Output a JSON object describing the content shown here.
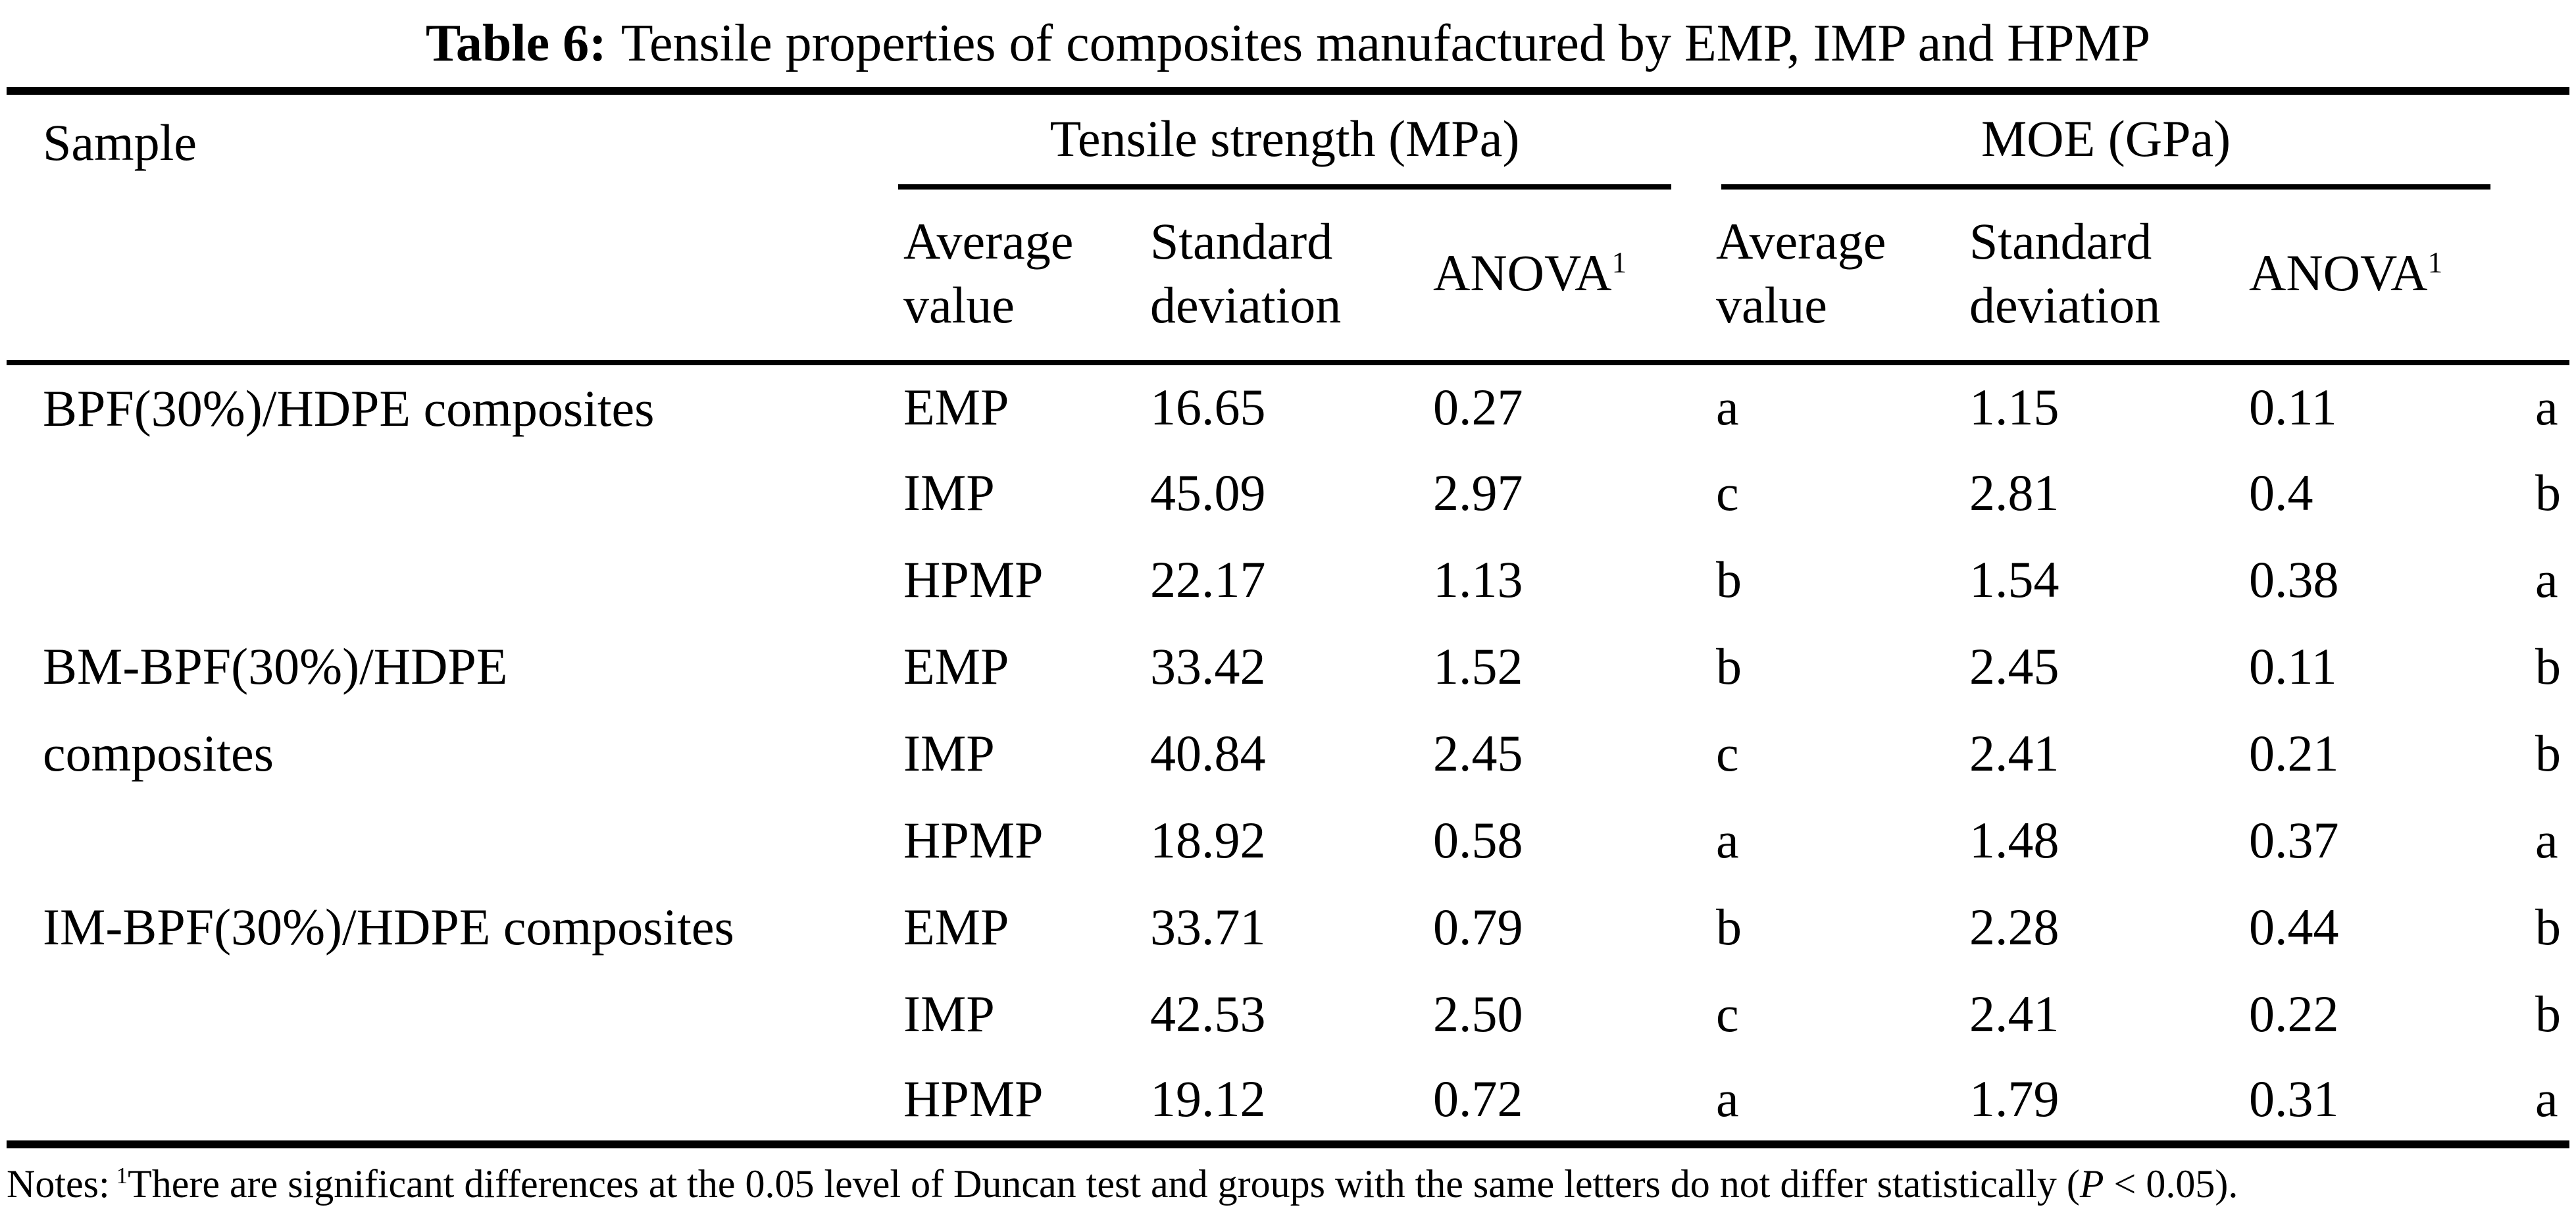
{
  "title": {
    "label": "Table 6:",
    "text": "Tensile properties of composites manufactured by EMP, IMP and HPMP"
  },
  "table": {
    "col_headers": {
      "sample": "Sample",
      "tensile_group": "Tensile strength (MPa)",
      "moe_group": "MOE (GPa)",
      "average_value": "Average\nvalue",
      "standard_deviation": "Standard\ndeviation",
      "anova": "ANOVA",
      "anova_sup": "1"
    },
    "groups": [
      {
        "sample": "BPF(30%)/HDPE composites",
        "rows": [
          {
            "method": "EMP",
            "ts_avg": "16.65",
            "ts_sd": "0.27",
            "ts_anova": "a",
            "moe_avg": "1.15",
            "moe_sd": "0.11",
            "moe_anova": "a"
          },
          {
            "method": "IMP",
            "ts_avg": "45.09",
            "ts_sd": "2.97",
            "ts_anova": "c",
            "moe_avg": "2.81",
            "moe_sd": "0.4",
            "moe_anova": "b"
          },
          {
            "method": "HPMP",
            "ts_avg": "22.17",
            "ts_sd": "1.13",
            "ts_anova": "b",
            "moe_avg": "1.54",
            "moe_sd": "0.38",
            "moe_anova": "a"
          }
        ]
      },
      {
        "sample": "BM-BPF(30%)/HDPE\ncomposites",
        "rows": [
          {
            "method": "EMP",
            "ts_avg": "33.42",
            "ts_sd": "1.52",
            "ts_anova": "b",
            "moe_avg": "2.45",
            "moe_sd": "0.11",
            "moe_anova": "b"
          },
          {
            "method": "IMP",
            "ts_avg": "40.84",
            "ts_sd": "2.45",
            "ts_anova": "c",
            "moe_avg": "2.41",
            "moe_sd": "0.21",
            "moe_anova": "b"
          },
          {
            "method": "HPMP",
            "ts_avg": "18.92",
            "ts_sd": "0.58",
            "ts_anova": "a",
            "moe_avg": "1.48",
            "moe_sd": "0.37",
            "moe_anova": "a"
          }
        ]
      },
      {
        "sample": "IM-BPF(30%)/HDPE composites",
        "rows": [
          {
            "method": "EMP",
            "ts_avg": "33.71",
            "ts_sd": "0.79",
            "ts_anova": "b",
            "moe_avg": "2.28",
            "moe_sd": "0.44",
            "moe_anova": "b"
          },
          {
            "method": "IMP",
            "ts_avg": "42.53",
            "ts_sd": "2.50",
            "ts_anova": "c",
            "moe_avg": "2.41",
            "moe_sd": "0.22",
            "moe_anova": "b"
          },
          {
            "method": "HPMP",
            "ts_avg": "19.12",
            "ts_sd": "0.72",
            "ts_anova": "a",
            "moe_avg": "1.79",
            "moe_sd": "0.31",
            "moe_anova": "a"
          }
        ]
      }
    ]
  },
  "notes": {
    "prefix": "Notes:",
    "sup": "1",
    "body_before_p": "There are significant differences at the 0.05 level of Duncan test and groups with the same letters do not differ statistically (",
    "p_symbol": "P",
    "body_after_p": " < 0.05)."
  }
}
